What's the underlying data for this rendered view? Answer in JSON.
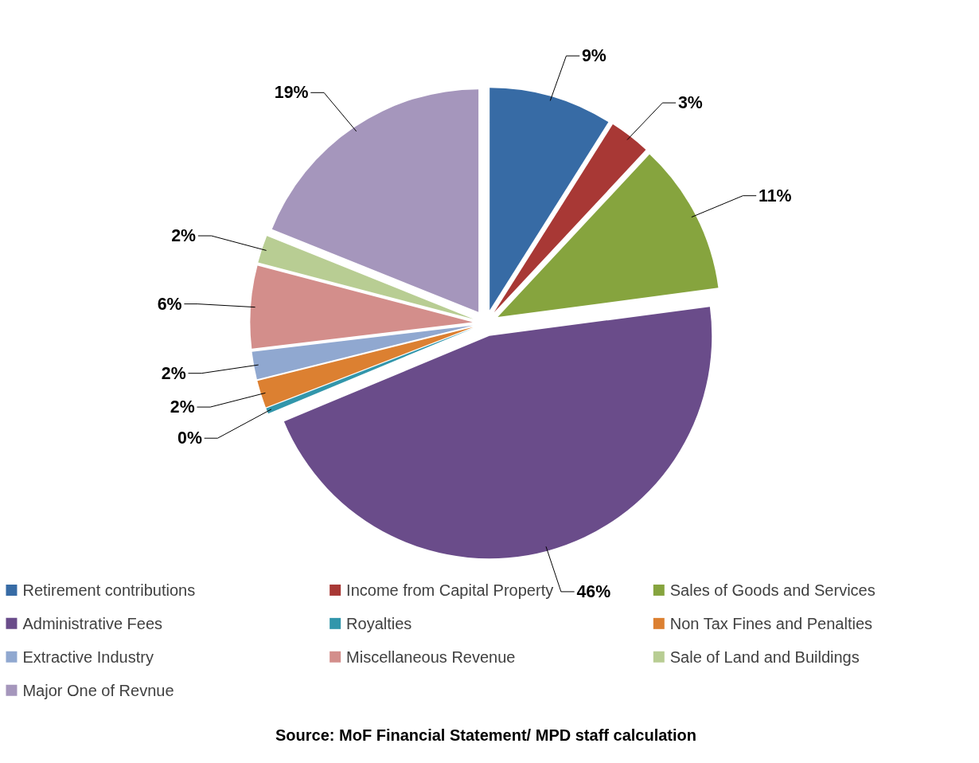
{
  "chart_data": {
    "type": "pie",
    "categories": [
      "Retirement contributions",
      "Income from Capital Property",
      "Sales of Goods and Services",
      "Administrative Fees",
      "Royalties",
      "Non Tax Fines and Penalties",
      "Extractive Industry",
      "Miscellaneous Revenue",
      "Sale of Land and Buildings",
      "Major One of Revnue"
    ],
    "values": [
      9,
      3,
      11,
      46,
      0.4,
      2,
      2,
      6,
      2,
      19
    ],
    "value_labels": [
      "9%",
      "3%",
      "11%",
      "46%",
      "0%",
      "2%",
      "2%",
      "6%",
      "2%",
      "19%"
    ],
    "colors": [
      "#376ba5",
      "#a83835",
      "#86a43e",
      "#6a4c8a",
      "#3296ab",
      "#dc8031",
      "#90a8d0",
      "#d38e8b",
      "#b8cd93",
      "#a596bc"
    ],
    "legend": "bottom",
    "annotations": [
      "Source: MoF Financial Statement/ MPD staff calculation"
    ]
  }
}
